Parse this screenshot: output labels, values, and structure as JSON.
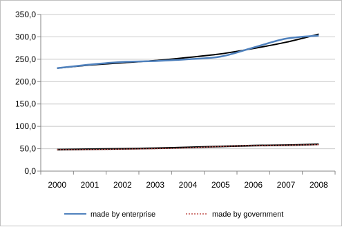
{
  "chart_data": {
    "type": "line",
    "title": "",
    "xlabel": "",
    "ylabel": "",
    "x": [
      "2000",
      "2001",
      "2002",
      "2003",
      "2004",
      "2005",
      "2006",
      "2007",
      "2008"
    ],
    "ylim": [
      0,
      350
    ],
    "y_ticks": [
      "0,0",
      "50,0",
      "100,0",
      "150,0",
      "200,0",
      "250,0",
      "300,0",
      "350,0"
    ],
    "grid": "horizontal",
    "legend": "bottom",
    "series": [
      {
        "name": "made by enterprise",
        "color": "#4f81bd",
        "style": "solid",
        "values": [
          230,
          238,
          244,
          246,
          250,
          256,
          276,
          296,
          303
        ]
      },
      {
        "name": "made by government",
        "color": "#c0504d",
        "style": "dotted",
        "values": [
          48,
          48,
          49,
          50,
          52,
          55,
          57,
          58,
          59
        ]
      }
    ],
    "trendlines": [
      {
        "color": "#000000",
        "values": [
          230,
          237,
          242,
          247,
          254,
          262,
          274,
          288,
          306
        ]
      },
      {
        "color": "#000000",
        "values": [
          48,
          49,
          50,
          51,
          53,
          55,
          57,
          58,
          60
        ]
      }
    ]
  }
}
